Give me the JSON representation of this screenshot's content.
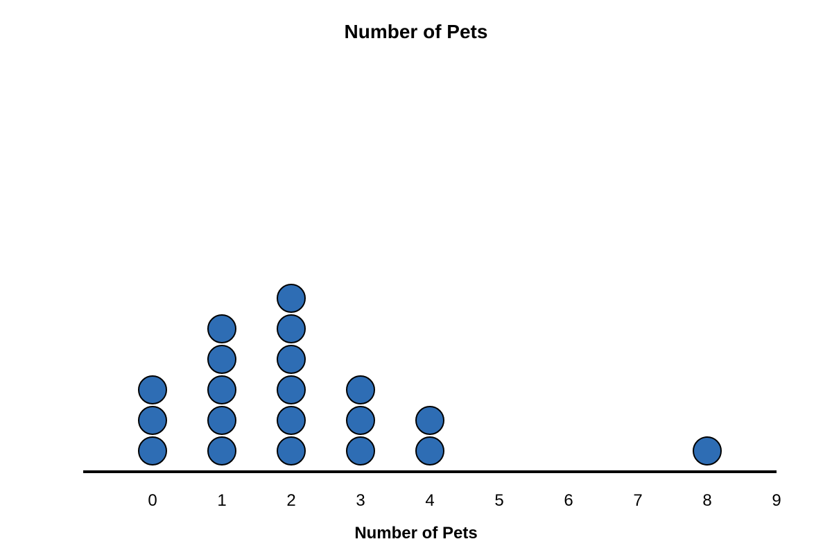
{
  "chart_data": {
    "type": "dot",
    "title": "Number of Pets",
    "xlabel": "Number of Pets",
    "ylabel": "",
    "x_ticks": [
      0,
      1,
      2,
      3,
      4,
      5,
      6,
      7,
      8,
      9
    ],
    "xlim": [
      -1,
      9
    ],
    "counts": [
      {
        "x": 0,
        "count": 3
      },
      {
        "x": 1,
        "count": 5
      },
      {
        "x": 2,
        "count": 6
      },
      {
        "x": 3,
        "count": 3
      },
      {
        "x": 4,
        "count": 2
      },
      {
        "x": 5,
        "count": 0
      },
      {
        "x": 6,
        "count": 0
      },
      {
        "x": 7,
        "count": 0
      },
      {
        "x": 8,
        "count": 1
      },
      {
        "x": 9,
        "count": 0
      }
    ],
    "dot_color": "#2e6db4",
    "dot_outline_color": "#000000",
    "grid": false,
    "legend": "none"
  }
}
